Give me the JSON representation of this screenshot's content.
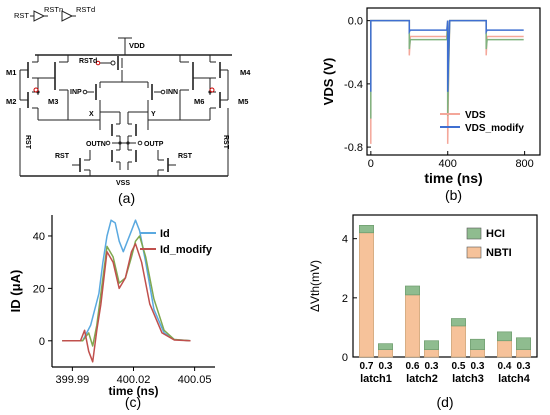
{
  "circuit": {
    "chain_labels": [
      "RST",
      "RSTn",
      "RSTd"
    ],
    "node_labels": {
      "vdd": "VDD",
      "vss": "VSS",
      "rstd": "RSTd",
      "m1": "M1",
      "m2": "M2",
      "m3": "M3",
      "m4": "M4",
      "m5": "M5",
      "m6": "M6",
      "inp": "INP",
      "inn": "INN",
      "x": "X",
      "y": "Y",
      "outn": "OUTN",
      "outp": "OUTP",
      "rst_left": "RST",
      "rst_right": "RST",
      "rst_vert_left": "RST",
      "rst_vert_right": "RST"
    }
  },
  "captions": {
    "a": "(a)",
    "b": "(b)",
    "c": "(c)",
    "d": "(d)"
  },
  "colors": {
    "vds": "#f4a79a",
    "vds_modify": "#3f6fd1",
    "vds_third": "#7fb27f",
    "id": "#5aa9e0",
    "id_modify": "#c0504d",
    "id_third": "#7fa84f",
    "nbti": "#f6c29a",
    "nbti_border": "#caa57a",
    "hci": "#8fbc8f",
    "hci_edge": "#e9e8a6"
  },
  "chart_data": [
    {
      "id": "b",
      "type": "line",
      "xlabel": "time (ns)",
      "ylabel": "VDS (V)",
      "xlim": [
        -20,
        880
      ],
      "ylim": [
        -0.85,
        0.08
      ],
      "xticks": [
        0,
        400,
        800
      ],
      "yticks": [
        0.0,
        -0.4,
        -0.8
      ],
      "ytick_labels": [
        "0.0",
        "-0.4",
        "-0.8"
      ],
      "legend_position": "bottom-right",
      "series": [
        {
          "name": "VDS",
          "color_key": "vds",
          "x": [
            0,
            0,
            0,
            10,
            200,
            200,
            205,
            395,
            400,
            400,
            405,
            410,
            600,
            600,
            605,
            795
          ],
          "y": [
            0,
            -0.78,
            0,
            0,
            0,
            -0.22,
            -0.1,
            -0.1,
            0,
            -0.78,
            -0.3,
            0,
            0,
            -0.22,
            -0.1,
            -0.1
          ]
        },
        {
          "name": "",
          "color_key": "vds_third",
          "x": [
            0,
            0,
            0,
            10,
            200,
            200,
            205,
            395,
            400,
            400,
            405,
            410,
            600,
            600,
            605,
            795
          ],
          "y": [
            0,
            -0.62,
            0,
            0,
            0,
            -0.18,
            -0.12,
            -0.12,
            0,
            -0.6,
            -0.28,
            0,
            0,
            -0.18,
            -0.12,
            -0.12
          ]
        },
        {
          "name": "VDS_modify",
          "color_key": "vds_modify",
          "x": [
            0,
            0,
            0,
            10,
            200,
            200,
            205,
            395,
            400,
            400,
            405,
            410,
            600,
            600,
            605,
            795
          ],
          "y": [
            0,
            -0.45,
            0,
            0,
            0,
            -0.07,
            -0.06,
            -0.06,
            0,
            -0.45,
            -0.2,
            0,
            0,
            -0.07,
            -0.06,
            -0.06
          ]
        }
      ]
    },
    {
      "id": "c",
      "type": "line",
      "xlabel": "time (ns)",
      "ylabel": "ID (μA)",
      "xlim": [
        399.98,
        400.06
      ],
      "ylim": [
        -10,
        48
      ],
      "xticks": [
        399.99,
        400.02,
        400.05
      ],
      "xtick_labels": [
        "399.99",
        "400.02",
        "400.05"
      ],
      "yticks": [
        0,
        20,
        40
      ],
      "legend_position": "top-right",
      "series": [
        {
          "name": "Id",
          "color_key": "id",
          "x": [
            399.985,
            399.995,
            399.999,
            400.003,
            400.005,
            400.007,
            400.009,
            400.011,
            400.013,
            400.015,
            400.017,
            400.019,
            400.021,
            400.023,
            400.026,
            400.03,
            400.035,
            400.04,
            400.048
          ],
          "y": [
            0,
            0,
            6,
            18,
            30,
            40,
            46,
            45,
            38,
            34,
            38,
            42,
            46,
            42,
            30,
            12,
            3,
            0.5,
            0
          ]
        },
        {
          "name": "",
          "color_key": "id_third",
          "x": [
            399.985,
            399.995,
            399.998,
            400.0,
            400.002,
            400.004,
            400.007,
            400.01,
            400.013,
            400.016,
            400.019,
            400.021,
            400.023,
            400.026,
            400.03,
            400.035,
            400.04,
            400.048
          ],
          "y": [
            0,
            0,
            3,
            -2,
            6,
            18,
            36,
            32,
            22,
            24,
            32,
            38,
            40,
            32,
            16,
            4,
            0.5,
            0
          ]
        },
        {
          "name": "Id_modify",
          "color_key": "id_modify",
          "x": [
            399.985,
            399.994,
            399.996,
            399.998,
            400.0,
            400.002,
            400.004,
            400.007,
            400.01,
            400.013,
            400.016,
            400.019,
            400.021,
            400.024,
            400.028,
            400.034,
            400.04,
            400.048
          ],
          "y": [
            0,
            0,
            4,
            -4,
            -8,
            4,
            14,
            34,
            30,
            20,
            24,
            34,
            37,
            30,
            14,
            3,
            0.3,
            0
          ]
        }
      ]
    },
    {
      "id": "d",
      "type": "bar",
      "ylabel": "ΔVth(mV)",
      "ylim": [
        0,
        4.8
      ],
      "yticks": [
        0,
        2,
        4
      ],
      "legend_position": "top-right",
      "groups": [
        "latch1",
        "latch2",
        "latch3",
        "latch4"
      ],
      "categories": [
        "0.7",
        "0.3",
        "0.6",
        "0.3",
        "0.5",
        "0.3",
        "0.4",
        "0.3"
      ],
      "series": [
        {
          "name": "NBTI",
          "color_key": "nbti",
          "values": [
            4.2,
            0.25,
            2.1,
            0.25,
            1.05,
            0.25,
            0.55,
            0.25
          ]
        },
        {
          "name": "HCI",
          "color_key": "hci",
          "values": [
            0.25,
            0.2,
            0.3,
            0.3,
            0.25,
            0.35,
            0.3,
            0.4
          ]
        }
      ]
    }
  ]
}
